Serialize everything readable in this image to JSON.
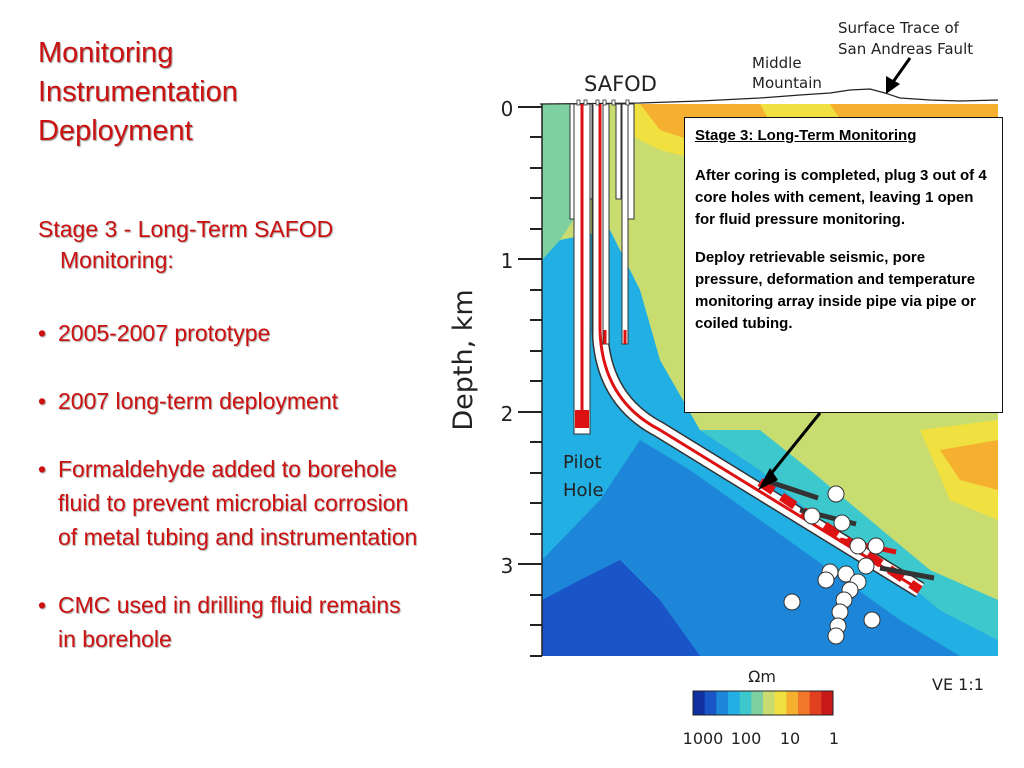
{
  "slide": {
    "title_lines": [
      "Monitoring",
      "Instrumentation",
      "Deployment"
    ],
    "heading_line1": "Stage 3 - Long-Term SAFOD",
    "heading_line2": "Monitoring:",
    "bullet_glyph": "•",
    "bullets": [
      "2005-2007 prototype",
      "2007 long-term deployment",
      "Formaldehyde added to borehole fluid to prevent microbial corrosion of metal tubing and instrumentation",
      "CMC used in drilling fluid remains in borehole"
    ]
  },
  "diagram": {
    "label_safod": "SAFOD",
    "label_middle_mountain_1": "Middle",
    "label_middle_mountain_2": "Mountain",
    "label_fault_1": "Surface Trace of",
    "label_fault_2": "San Andreas Fault",
    "label_pilot_1": "Pilot",
    "label_pilot_2": "Hole",
    "axis_label": "Depth, km",
    "depth_ticks": [
      "0",
      "1",
      "2",
      "3"
    ],
    "depth_range_km": [
      0,
      3.6
    ],
    "legend_unit": "Ωm",
    "legend_ticks": [
      "1000",
      "100",
      "10",
      "1"
    ],
    "legend_colors": [
      "#1030a0",
      "#1a55c8",
      "#1d86d8",
      "#22b0e4",
      "#3cc8cc",
      "#7fd0a0",
      "#c8dc70",
      "#f0e040",
      "#f6b030",
      "#f07828",
      "#e04020",
      "#c81818"
    ],
    "ve_label": "VE 1:1",
    "casing_color": "#dd1111"
  },
  "callout": {
    "title": "Stage 3: Long-Term Monitoring",
    "para1": "After coring is completed, plug 3 out of 4 core holes with cement, leaving 1 open for fluid pressure monitoring.",
    "para2": "Deploy retrievable seismic, pore pressure, deformation and temperature monitoring array inside pipe via pipe or coiled tubing."
  }
}
